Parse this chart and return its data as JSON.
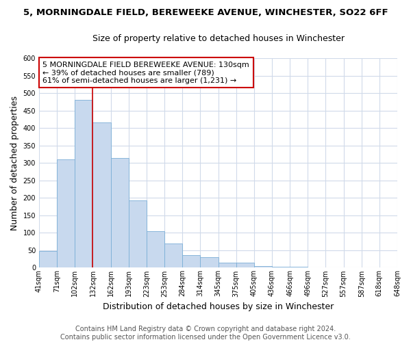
{
  "title": "5, MORNINGDALE FIELD, BEREWEEKE AVENUE, WINCHESTER, SO22 6FF",
  "subtitle": "Size of property relative to detached houses in Winchester",
  "xlabel": "Distribution of detached houses by size in Winchester",
  "ylabel": "Number of detached properties",
  "bar_heights": [
    47,
    311,
    480,
    415,
    315,
    193,
    105,
    69,
    36,
    31,
    14,
    15,
    5,
    2,
    3,
    1,
    0,
    0,
    0,
    1
  ],
  "bar_color": "#c8d9ee",
  "bar_edge_color": "#7aaed6",
  "tick_labels": [
    "41sqm",
    "71sqm",
    "102sqm",
    "132sqm",
    "162sqm",
    "193sqm",
    "223sqm",
    "253sqm",
    "284sqm",
    "314sqm",
    "345sqm",
    "375sqm",
    "405sqm",
    "436sqm",
    "466sqm",
    "496sqm",
    "527sqm",
    "557sqm",
    "587sqm",
    "618sqm",
    "648sqm"
  ],
  "ylim": [
    0,
    600
  ],
  "yticks": [
    0,
    50,
    100,
    150,
    200,
    250,
    300,
    350,
    400,
    450,
    500,
    550,
    600
  ],
  "vline_idx": 3,
  "vline_color": "#cc0000",
  "annotation_line1": "5 MORNINGDALE FIELD BEREWEEKE AVENUE: 130sqm",
  "annotation_line2": "← 39% of detached houses are smaller (789)",
  "annotation_line3": "61% of semi-detached houses are larger (1,231) →",
  "annotation_box_color": "#ffffff",
  "annotation_box_edge": "#cc0000",
  "footer_line1": "Contains HM Land Registry data © Crown copyright and database right 2024.",
  "footer_line2": "Contains public sector information licensed under the Open Government Licence v3.0.",
  "bg_color": "#ffffff",
  "plot_bg_color": "#ffffff",
  "grid_color": "#d0daea",
  "title_fontsize": 9.5,
  "subtitle_fontsize": 9.0,
  "axis_label_fontsize": 9,
  "tick_fontsize": 7.0,
  "annotation_fontsize": 8.0,
  "footer_fontsize": 7.0
}
